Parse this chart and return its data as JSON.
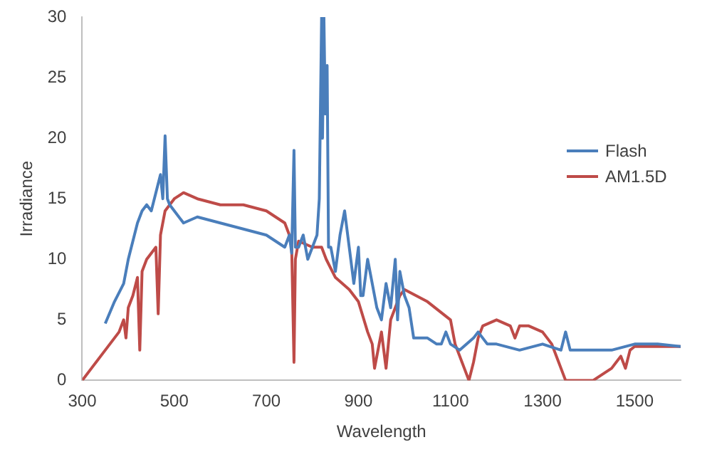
{
  "chart_data": {
    "type": "line",
    "xlabel": "Wavelength",
    "ylabel": "Irradiance",
    "xlim": [
      300,
      1600
    ],
    "xticks": [
      300,
      500,
      700,
      900,
      1100,
      1300,
      1500
    ],
    "ylim": [
      0,
      30
    ],
    "yticks": [
      0,
      5,
      10,
      15,
      20,
      25,
      30
    ],
    "grid": false,
    "legend": "right",
    "marker": "none",
    "line_style": "solid",
    "series": [
      {
        "name": "Flash",
        "color": "#4a7ebb",
        "x": [
          350,
          370,
          390,
          400,
          410,
          420,
          430,
          440,
          450,
          460,
          470,
          475,
          480,
          485,
          490,
          500,
          520,
          550,
          600,
          650,
          700,
          720,
          740,
          750,
          755,
          760,
          763,
          770,
          780,
          790,
          800,
          810,
          815,
          820,
          822,
          825,
          828,
          832,
          835,
          840,
          850,
          860,
          870,
          880,
          890,
          900,
          905,
          910,
          920,
          930,
          940,
          950,
          960,
          970,
          980,
          985,
          990,
          1000,
          1010,
          1020,
          1050,
          1070,
          1080,
          1090,
          1100,
          1120,
          1150,
          1160,
          1180,
          1200,
          1250,
          1300,
          1340,
          1350,
          1360,
          1400,
          1450,
          1500,
          1550,
          1600
        ],
        "values": [
          4.7,
          6.5,
          8,
          10,
          11.5,
          13,
          14,
          14.5,
          14,
          15.5,
          17,
          15,
          20.2,
          15,
          14.5,
          14,
          13,
          13.5,
          13,
          12.5,
          12,
          11.5,
          11,
          12,
          10.5,
          19,
          11,
          11,
          12,
          10,
          11,
          12,
          15,
          30,
          20,
          30,
          22,
          26,
          11,
          11,
          9,
          12,
          14,
          11,
          8,
          11,
          7,
          7,
          10,
          8,
          6,
          5,
          8,
          6,
          10,
          5,
          9,
          7,
          6,
          3.5,
          3.5,
          3,
          3,
          4,
          3,
          2.5,
          3.5,
          4,
          3,
          3,
          2.5,
          3,
          2.5,
          4,
          2.5,
          2.5,
          2.5,
          3,
          3,
          2.8
        ]
      },
      {
        "name": "AM1.5D",
        "color": "#be4b48",
        "x": [
          300,
          320,
          340,
          360,
          380,
          390,
          395,
          400,
          410,
          420,
          425,
          430,
          440,
          450,
          460,
          465,
          470,
          480,
          490,
          500,
          520,
          550,
          600,
          650,
          700,
          720,
          740,
          750,
          755,
          760,
          763,
          770,
          800,
          820,
          830,
          850,
          880,
          900,
          920,
          930,
          935,
          940,
          950,
          960,
          970,
          990,
          1000,
          1050,
          1100,
          1110,
          1130,
          1140,
          1150,
          1160,
          1170,
          1200,
          1230,
          1240,
          1250,
          1270,
          1300,
          1320,
          1340,
          1350,
          1410,
          1430,
          1450,
          1470,
          1480,
          1490,
          1500,
          1550,
          1600
        ],
        "values": [
          0,
          1,
          2,
          3,
          4,
          5,
          3.5,
          6,
          7,
          8.5,
          2.5,
          9,
          10,
          10.5,
          11,
          5.5,
          12,
          14,
          14.5,
          15,
          15.5,
          15,
          14.5,
          14.5,
          14,
          13.5,
          13,
          12,
          11,
          1.5,
          10,
          11.5,
          11,
          11,
          10,
          8.5,
          7.5,
          6.5,
          4,
          3,
          1,
          2,
          4,
          1,
          5,
          7,
          7.5,
          6.5,
          5,
          3,
          1,
          0,
          1.5,
          3.5,
          4.5,
          5,
          4.5,
          3.5,
          4.5,
          4.5,
          4,
          3,
          1,
          0,
          0,
          0.5,
          1,
          2,
          1,
          2.5,
          2.8,
          2.8,
          2.8
        ]
      }
    ]
  }
}
